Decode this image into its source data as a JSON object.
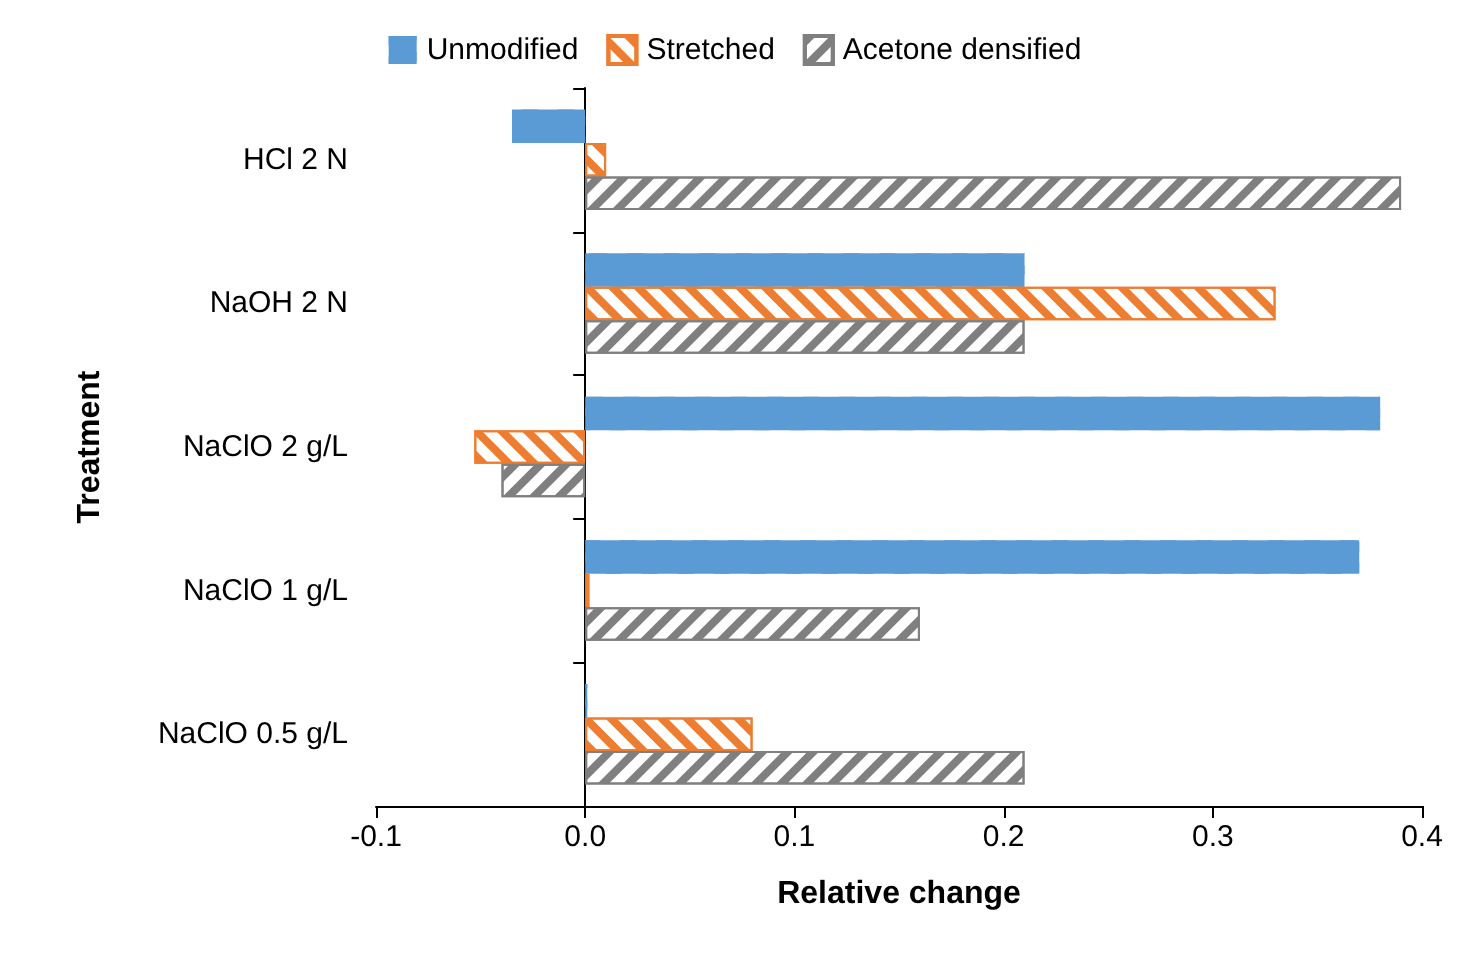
{
  "chart_data": {
    "type": "bar",
    "orientation": "horizontal",
    "xlabel": "Relative change",
    "ylabel": "Treatment",
    "categories": [
      "HCl 2 N",
      "NaOH 2 N",
      "NaClO 2 g/L",
      "NaClO 1 g/L",
      "NaClO 0.5 g/L"
    ],
    "series": [
      {
        "name": "Unmodified",
        "color": "#5b9bd5",
        "values": [
          -0.035,
          0.21,
          0.38,
          0.37,
          0.001
        ]
      },
      {
        "name": "Stretched",
        "color": "#ed7d31",
        "values": [
          0.01,
          0.33,
          -0.053,
          0.002,
          0.08
        ]
      },
      {
        "name": "Acetone densified",
        "color": "#7f7f7f",
        "values": [
          0.39,
          0.21,
          -0.04,
          0.16,
          0.21
        ]
      }
    ],
    "xlim": [
      -0.1,
      0.4
    ],
    "xticks": [
      -0.1,
      {
        "value": 0,
        "label": "0.0"
      },
      0.1,
      0.2,
      0.3,
      0.4
    ],
    "legend": "top"
  }
}
